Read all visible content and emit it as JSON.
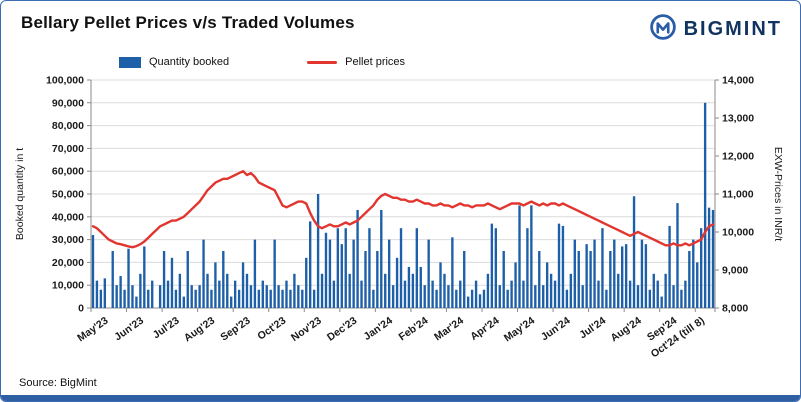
{
  "header": {
    "title": "Bellary Pellet Prices v/s Traded Volumes",
    "logo_text": "BIGMINT"
  },
  "footer": {
    "source": "Source: BigMint"
  },
  "colors": {
    "bar": "#1d5fa8",
    "line": "#e2352f",
    "brand": "#2a5ca8",
    "brand_text": "#12335f"
  },
  "chart_data": {
    "type": "bar+line combo",
    "title": "Bellary Pellet Prices v/s Traded Volumes",
    "left_axis": {
      "label": "Booked quantity in t",
      "min": 0,
      "max": 100000,
      "step": 10000
    },
    "right_axis": {
      "label": "EXW-Prices in INR/t",
      "min": 8000,
      "max": 14000,
      "step": 1000
    },
    "grid": true,
    "legend_position": "top",
    "months": [
      {
        "label": "May'23",
        "points": 9
      },
      {
        "label": "Jun'23",
        "points": 9
      },
      {
        "label": "Jul'23",
        "points": 9
      },
      {
        "label": "Aug'23",
        "points": 9
      },
      {
        "label": "Sep'23",
        "points": 9
      },
      {
        "label": "Oct'23",
        "points": 9
      },
      {
        "label": "Nov'23",
        "points": 9
      },
      {
        "label": "Dec'23",
        "points": 9
      },
      {
        "label": "Jan'24",
        "points": 9
      },
      {
        "label": "Feb'24",
        "points": 9
      },
      {
        "label": "Mar'24",
        "points": 9
      },
      {
        "label": "Apr'24",
        "points": 9
      },
      {
        "label": "May'24",
        "points": 9
      },
      {
        "label": "Jun'24",
        "points": 9
      },
      {
        "label": "Jul'24",
        "points": 9
      },
      {
        "label": "Aug'24",
        "points": 9
      },
      {
        "label": "Sep'24",
        "points": 9
      },
      {
        "label": "Oct'24 (till 8)",
        "points": 5
      }
    ],
    "series": [
      {
        "name": "Quantity booked",
        "type": "bar",
        "axis": "left",
        "color": "#1d5fa8",
        "values": [
          32000,
          12000,
          8000,
          13000,
          0,
          25000,
          10000,
          14000,
          8000,
          26000,
          10000,
          5000,
          15000,
          27000,
          8000,
          12000,
          0,
          10000,
          25000,
          12000,
          22000,
          8000,
          15000,
          5000,
          25000,
          10000,
          8000,
          10000,
          30000,
          15000,
          8000,
          20000,
          12000,
          25000,
          15000,
          5000,
          12000,
          8000,
          20000,
          15000,
          10000,
          30000,
          8000,
          12000,
          10000,
          8000,
          30000,
          10000,
          8000,
          12000,
          8000,
          15000,
          10000,
          8000,
          22000,
          38000,
          8000,
          50000,
          15000,
          33000,
          30000,
          12000,
          35000,
          28000,
          35000,
          15000,
          30000,
          43000,
          12000,
          25000,
          35000,
          8000,
          25000,
          43000,
          15000,
          30000,
          10000,
          22000,
          35000,
          12000,
          18000,
          15000,
          35000,
          18000,
          10000,
          30000,
          12000,
          8000,
          20000,
          15000,
          10000,
          31000,
          8000,
          12000,
          25000,
          5000,
          8000,
          12000,
          6000,
          8000,
          15000,
          37000,
          35000,
          10000,
          25000,
          8000,
          12000,
          20000,
          45000,
          12000,
          35000,
          45000,
          10000,
          25000,
          10000,
          20000,
          15000,
          12000,
          37000,
          36000,
          8000,
          15000,
          30000,
          25000,
          10000,
          28000,
          25000,
          30000,
          12000,
          35000,
          8000,
          25000,
          30000,
          15000,
          27000,
          28000,
          12000,
          49000,
          10000,
          30000,
          28000,
          8000,
          15000,
          12000,
          5000,
          15000,
          36000,
          10000,
          46000,
          8000,
          12000,
          25000,
          30000,
          20000,
          35000,
          90000,
          44000,
          43000
        ]
      },
      {
        "name": "Pellet prices",
        "type": "line",
        "axis": "right",
        "color": "#e2352f",
        "values": [
          10150,
          10100,
          10000,
          9900,
          9800,
          9750,
          9700,
          9680,
          9650,
          9620,
          9600,
          9630,
          9680,
          9750,
          9850,
          9950,
          10050,
          10150,
          10200,
          10250,
          10300,
          10300,
          10350,
          10400,
          10500,
          10600,
          10700,
          10800,
          10950,
          11100,
          11200,
          11300,
          11350,
          11400,
          11400,
          11450,
          11500,
          11550,
          11600,
          11500,
          11550,
          11450,
          11300,
          11250,
          11200,
          11150,
          11100,
          10900,
          10700,
          10650,
          10700,
          10750,
          10800,
          10800,
          10750,
          10500,
          10300,
          10150,
          10100,
          10150,
          10200,
          10150,
          10150,
          10200,
          10250,
          10200,
          10250,
          10300,
          10400,
          10500,
          10600,
          10700,
          10850,
          10950,
          11000,
          10950,
          10900,
          10900,
          10850,
          10850,
          10800,
          10800,
          10850,
          10800,
          10750,
          10750,
          10700,
          10700,
          10750,
          10700,
          10700,
          10650,
          10700,
          10750,
          10700,
          10700,
          10650,
          10700,
          10700,
          10700,
          10750,
          10700,
          10650,
          10600,
          10650,
          10700,
          10750,
          10750,
          10750,
          10700,
          10750,
          10800,
          10750,
          10700,
          10750,
          10700,
          10750,
          10750,
          10700,
          10750,
          10700,
          10650,
          10600,
          10550,
          10500,
          10450,
          10400,
          10350,
          10300,
          10250,
          10200,
          10150,
          10100,
          10050,
          10000,
          9950,
          9900,
          9950,
          10000,
          9950,
          9900,
          9850,
          9800,
          9750,
          9700,
          9650,
          9650,
          9700,
          9650,
          9650,
          9700,
          9650,
          9700,
          9750,
          9800,
          10000,
          10150,
          10200
        ]
      }
    ]
  }
}
